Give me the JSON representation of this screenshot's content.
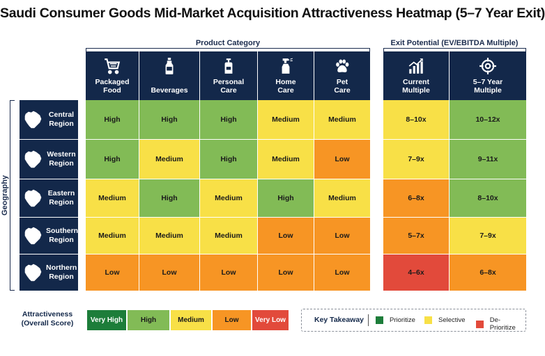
{
  "title": "Saudi Consumer Goods Mid-Market Acquisition Attractiveness Heatmap (5–7 Year Exit)",
  "groups": {
    "product": "Product Category",
    "exit": "Exit Potential (EV/EBITDA Multiple)",
    "geography": "Geography"
  },
  "colors": {
    "Very High": "#1d7d3a",
    "High": "#82bb56",
    "Medium": "#f8e047",
    "Low": "#f79524",
    "Very Low": "#e24a3b",
    "header": "#13284a"
  },
  "chart_data": {
    "type": "heatmap",
    "product_columns": [
      {
        "label": "Packaged\nFood",
        "icon": "shopping-cart-icon"
      },
      {
        "label": "Beverages",
        "icon": "bottle-icon"
      },
      {
        "label": "Personal\nCare",
        "icon": "lotion-bottle-icon"
      },
      {
        "label": "Home\nCare",
        "icon": "spray-bottle-icon"
      },
      {
        "label": "Pet\nCare",
        "icon": "paw-icon"
      }
    ],
    "exit_columns": [
      {
        "label": "Current\nMultiple",
        "icon": "bar-chart-up-icon"
      },
      {
        "label": "5–7 Year\nMultiple",
        "icon": "target-icon"
      }
    ],
    "rows": [
      {
        "label": "Central\nRegion",
        "map": "central-region-map-icon",
        "values": [
          "High",
          "High",
          "High",
          "Medium",
          "Medium"
        ],
        "exit": [
          {
            "text": "8–10x",
            "level": "Medium"
          },
          {
            "text": "10–12x",
            "level": "High"
          }
        ]
      },
      {
        "label": "Western\nRegion",
        "map": "western-region-map-icon",
        "values": [
          "High",
          "Medium",
          "High",
          "Medium",
          "Low"
        ],
        "exit": [
          {
            "text": "7–9x",
            "level": "Medium"
          },
          {
            "text": "9–11x",
            "level": "High"
          }
        ]
      },
      {
        "label": "Eastern\nRegion",
        "map": "eastern-region-map-icon",
        "values": [
          "Medium",
          "High",
          "Medium",
          "High",
          "Medium"
        ],
        "exit": [
          {
            "text": "6–8x",
            "level": "Low"
          },
          {
            "text": "8–10x",
            "level": "High"
          }
        ]
      },
      {
        "label": "Southern\nRegion",
        "map": "southern-region-map-icon",
        "values": [
          "Medium",
          "Medium",
          "Medium",
          "Low",
          "Low"
        ],
        "exit": [
          {
            "text": "5–7x",
            "level": "Low"
          },
          {
            "text": "7–9x",
            "level": "Medium"
          }
        ]
      },
      {
        "label": "Northern\nRegion",
        "map": "northern-region-map-icon",
        "values": [
          "Low",
          "Low",
          "Low",
          "Low",
          "Low"
        ],
        "exit": [
          {
            "text": "4–6x",
            "level": "Very Low"
          },
          {
            "text": "6–8x",
            "level": "Low"
          }
        ]
      }
    ]
  },
  "legend": {
    "title": "Attractiveness\n(Overall Score)",
    "items": [
      {
        "label": "Very High",
        "level": "Very High",
        "text_color": "#ffffff"
      },
      {
        "label": "High",
        "level": "High",
        "text_color": "#1a1a1a"
      },
      {
        "label": "Medium",
        "level": "Medium",
        "text_color": "#1a1a1a"
      },
      {
        "label": "Low",
        "level": "Low",
        "text_color": "#1a1a1a"
      },
      {
        "label": "Very Low",
        "level": "Very Low",
        "text_color": "#ffffff"
      }
    ]
  },
  "takeaway": {
    "title": "Key Takeaway",
    "items": [
      {
        "label": "Prioritize",
        "color": "#1d7d3a"
      },
      {
        "label": "Selective",
        "color": "#f8e047"
      },
      {
        "label": "De-Prioritize",
        "color": "#e24a3b"
      }
    ]
  }
}
